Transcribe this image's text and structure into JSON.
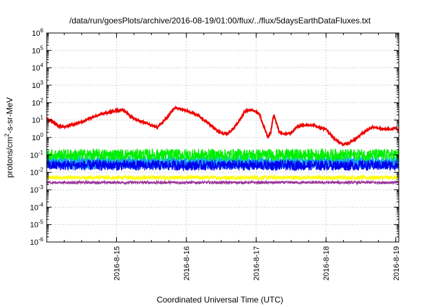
{
  "chart_data": {
    "type": "line",
    "title": "/data/run/goesPlots/archive/2016-08-19/01:00/flux/../flux/5daysEarthDataFluxes.txt",
    "xlabel": "Coordinated Universal Time (UTC)",
    "ylabel": "protons/cm2-s-sr-MeV",
    "ylabel_parts": [
      "protons/cm",
      "2",
      "-s-sr-MeV"
    ],
    "y_scale": "log",
    "ylim": [
      1e-06,
      1000000.0
    ],
    "xlim": [
      "2016-08-14 00:00",
      "2016-08-19 01:00"
    ],
    "grid": true,
    "y_ticks": [
      {
        "base": "10",
        "exp": "-6"
      },
      {
        "base": "10",
        "exp": "-5"
      },
      {
        "base": "10",
        "exp": "-4"
      },
      {
        "base": "10",
        "exp": "-3"
      },
      {
        "base": "10",
        "exp": "-2"
      },
      {
        "base": "10",
        "exp": "-1"
      },
      {
        "base": "10",
        "exp": "0"
      },
      {
        "base": "10",
        "exp": "1"
      },
      {
        "base": "10",
        "exp": "2"
      },
      {
        "base": "10",
        "exp": "3"
      },
      {
        "base": "10",
        "exp": "4"
      },
      {
        "base": "10",
        "exp": "5"
      },
      {
        "base": "10",
        "exp": "6"
      }
    ],
    "x_ticks": [
      "2016-8-15",
      "2016-8-16",
      "2016-8-17",
      "2016-8-18",
      "2016-8-19"
    ],
    "series": [
      {
        "color": "#ee0000",
        "x": [
          "2016-08-14 00:00",
          "2016-08-14 02:00",
          "2016-08-14 04:00",
          "2016-08-14 06:00",
          "2016-08-14 08:00",
          "2016-08-14 12:00",
          "2016-08-14 16:00",
          "2016-08-14 20:00",
          "2016-08-15 00:00",
          "2016-08-15 02:00",
          "2016-08-15 04:00",
          "2016-08-15 06:00",
          "2016-08-15 10:00",
          "2016-08-15 12:00",
          "2016-08-15 14:00",
          "2016-08-15 16:00",
          "2016-08-15 18:00",
          "2016-08-15 20:00",
          "2016-08-16 00:00",
          "2016-08-16 04:00",
          "2016-08-16 06:00",
          "2016-08-16 08:00",
          "2016-08-16 10:00",
          "2016-08-16 12:00",
          "2016-08-16 14:00",
          "2016-08-16 16:00",
          "2016-08-16 18:00",
          "2016-08-16 20:00",
          "2016-08-16 22:00",
          "2016-08-17 00:00",
          "2016-08-17 01:00",
          "2016-08-17 02:00",
          "2016-08-17 03:00",
          "2016-08-17 04:00",
          "2016-08-17 05:00",
          "2016-08-17 06:00",
          "2016-08-17 08:00",
          "2016-08-17 10:00",
          "2016-08-17 12:00",
          "2016-08-17 14:00",
          "2016-08-17 16:00",
          "2016-08-17 20:00",
          "2016-08-17 22:00",
          "2016-08-18 00:00",
          "2016-08-18 02:00",
          "2016-08-18 04:00",
          "2016-08-18 06:00",
          "2016-08-18 08:00",
          "2016-08-18 10:00",
          "2016-08-18 12:00",
          "2016-08-18 14:00",
          "2016-08-18 16:00",
          "2016-08-18 18:00",
          "2016-08-18 20:00",
          "2016-08-18 22:00",
          "2016-08-19 00:00",
          "2016-08-19 01:00"
        ],
        "values": [
          12,
          8,
          4.5,
          4,
          5,
          8,
          15,
          25,
          35,
          40,
          22,
          12,
          7,
          5,
          4,
          8,
          20,
          50,
          35,
          18,
          10,
          6,
          3,
          1.8,
          1.6,
          3,
          8,
          30,
          40,
          30,
          25,
          8,
          3,
          1,
          2,
          20,
          2,
          1.5,
          1.8,
          4,
          5,
          5,
          3.5,
          3,
          1.2,
          0.6,
          0.4,
          0.5,
          0.8,
          1.5,
          2.5,
          4,
          3.5,
          3,
          3,
          3.5,
          2.5
        ]
      },
      {
        "color": "#00ee00",
        "x": [
          "2016-08-14 00:00",
          "2016-08-19 01:00"
        ],
        "values": [
          0.1,
          0.1
        ]
      },
      {
        "color": "#00cccc",
        "x": [
          "2016-08-14 00:00",
          "2016-08-19 01:00"
        ],
        "values": [
          0.045,
          0.045
        ]
      },
      {
        "color": "#0000ee",
        "x": [
          "2016-08-14 00:00",
          "2016-08-19 01:00"
        ],
        "values": [
          0.025,
          0.025
        ]
      },
      {
        "color": "#1e90ff",
        "x": [
          "2016-08-14 00:00",
          "2016-08-19 01:00"
        ],
        "values": [
          0.03,
          0.03
        ]
      },
      {
        "color": "#ffff00",
        "x": [
          "2016-08-14 00:00",
          "2016-08-19 01:00"
        ],
        "values": [
          0.005,
          0.005
        ]
      },
      {
        "color": "#993399",
        "x": [
          "2016-08-14 00:00",
          "2016-08-19 01:00"
        ],
        "values": [
          0.0026,
          0.0026
        ]
      }
    ]
  }
}
